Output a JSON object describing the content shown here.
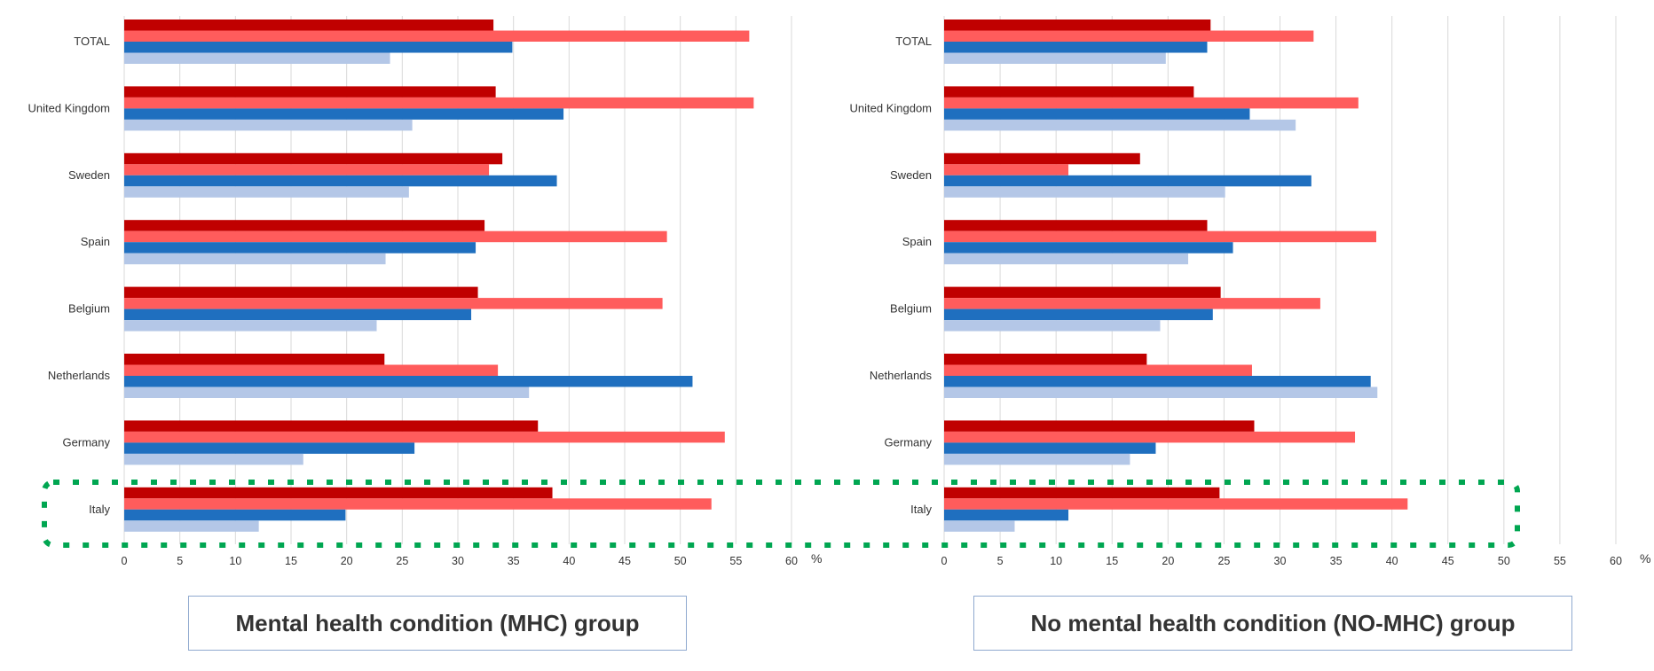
{
  "colors": {
    "series_dark_red": "#c00000",
    "series_light_red": "#ff5c5c",
    "series_dark_blue": "#1f6fbf",
    "series_light_blue": "#b4c7e7",
    "grid": "#d9d9d9",
    "highlight_box": "#00a651",
    "caption_border": "#8fa9cf"
  },
  "chart_data": [
    {
      "type": "bar",
      "orientation": "horizontal",
      "caption": "Mental health condition (MHC) group",
      "unit": "%",
      "xlim": [
        0,
        60
      ],
      "xticks": [
        "0",
        "5",
        "10",
        "15",
        "20",
        "25",
        "30",
        "35",
        "40",
        "45",
        "50",
        "55",
        "60"
      ],
      "grid": true,
      "categories": [
        "TOTAL",
        "United Kingdom",
        "Sweden",
        "Spain",
        "Belgium",
        "Netherlands",
        "Germany",
        "Italy"
      ],
      "series": [
        {
          "values": [
            33.2,
            33.4,
            34.0,
            32.4,
            31.8,
            23.4,
            37.2,
            38.5
          ]
        },
        {
          "values": [
            56.2,
            56.6,
            32.8,
            48.8,
            48.4,
            33.6,
            54.0,
            52.8
          ]
        },
        {
          "values": [
            34.9,
            39.5,
            38.9,
            31.6,
            31.2,
            51.1,
            26.1,
            19.9
          ]
        },
        {
          "values": [
            23.9,
            25.9,
            25.6,
            23.5,
            22.7,
            36.4,
            16.1,
            12.1
          ]
        }
      ],
      "highlighted_category": "Italy"
    },
    {
      "type": "bar",
      "orientation": "horizontal",
      "caption": "No mental health condition (NO-MHC) group",
      "unit": "%",
      "xlim": [
        0,
        60
      ],
      "xticks": [
        "0",
        "5",
        "10",
        "15",
        "20",
        "25",
        "30",
        "35",
        "40",
        "45",
        "50",
        "55",
        "60"
      ],
      "grid": true,
      "categories": [
        "TOTAL",
        "United Kingdom",
        "Sweden",
        "Spain",
        "Belgium",
        "Netherlands",
        "Germany",
        "Italy"
      ],
      "series": [
        {
          "values": [
            23.8,
            22.3,
            17.5,
            23.5,
            24.7,
            18.1,
            27.7,
            24.6
          ]
        },
        {
          "values": [
            33.0,
            37.0,
            11.1,
            38.6,
            33.6,
            27.5,
            36.7,
            41.4
          ]
        },
        {
          "values": [
            23.5,
            27.3,
            32.8,
            25.8,
            24.0,
            38.1,
            18.9,
            11.1
          ]
        },
        {
          "values": [
            19.8,
            31.4,
            25.1,
            21.8,
            19.3,
            38.7,
            16.6,
            6.3
          ]
        }
      ],
      "highlighted_category": "Italy"
    }
  ]
}
